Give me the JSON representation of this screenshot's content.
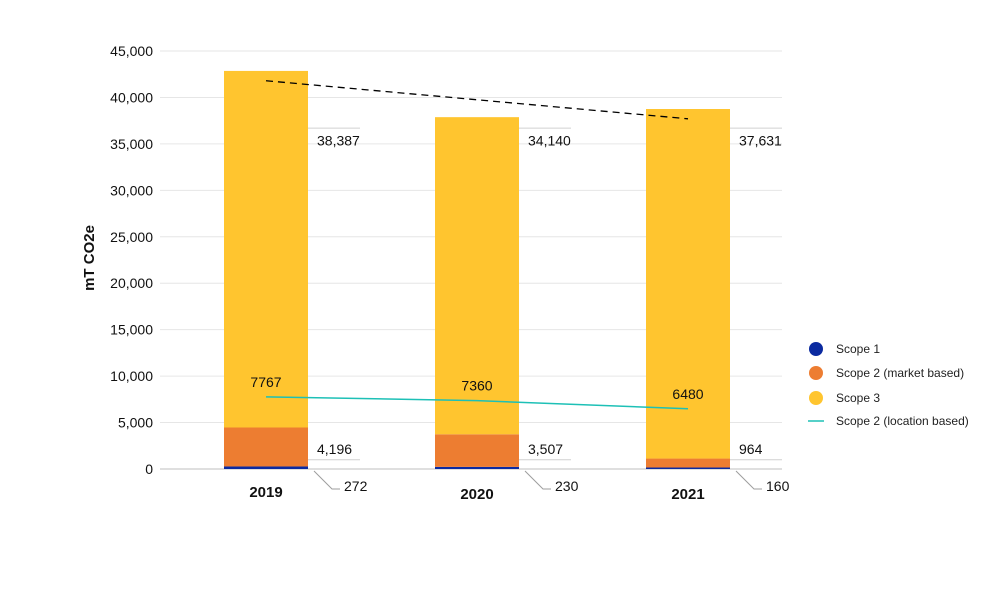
{
  "chart_data": {
    "type": "bar",
    "stacked": true,
    "title": "",
    "xlabel": "",
    "ylabel": "mT CO2e",
    "ylim": [
      0,
      45000
    ],
    "yticks": [
      "0",
      "5,000",
      "10,000",
      "15,000",
      "20,000",
      "25,000",
      "30,000",
      "35,000",
      "40,000",
      "45,000"
    ],
    "grid": true,
    "legend_position": "right",
    "categories": [
      "2019",
      "2020",
      "2021"
    ],
    "series": [
      {
        "name": "Scope 1",
        "type": "bar",
        "color": "#0B2AA0",
        "values": [
          272,
          230,
          160
        ],
        "labels": [
          "272",
          "230",
          "160"
        ]
      },
      {
        "name": "Scope 2 (market based)",
        "type": "bar",
        "color": "#ED7D31",
        "values": [
          4196,
          3507,
          964
        ],
        "labels": [
          "4,196",
          "3,507",
          "964"
        ]
      },
      {
        "name": "Scope 3",
        "type": "bar",
        "color": "#FFC52F",
        "values": [
          38387,
          34140,
          37631
        ],
        "labels": [
          "38,387",
          "34,140",
          "37,631"
        ]
      },
      {
        "name": "Scope 2 (location based)",
        "type": "line",
        "color": "#1DC0B6",
        "values": [
          7767,
          7360,
          6480
        ],
        "labels": [
          "7767",
          "7360",
          "6480"
        ]
      }
    ],
    "trendline": {
      "style": "dashed",
      "color": "#000000",
      "values": [
        41800,
        37700
      ]
    }
  }
}
